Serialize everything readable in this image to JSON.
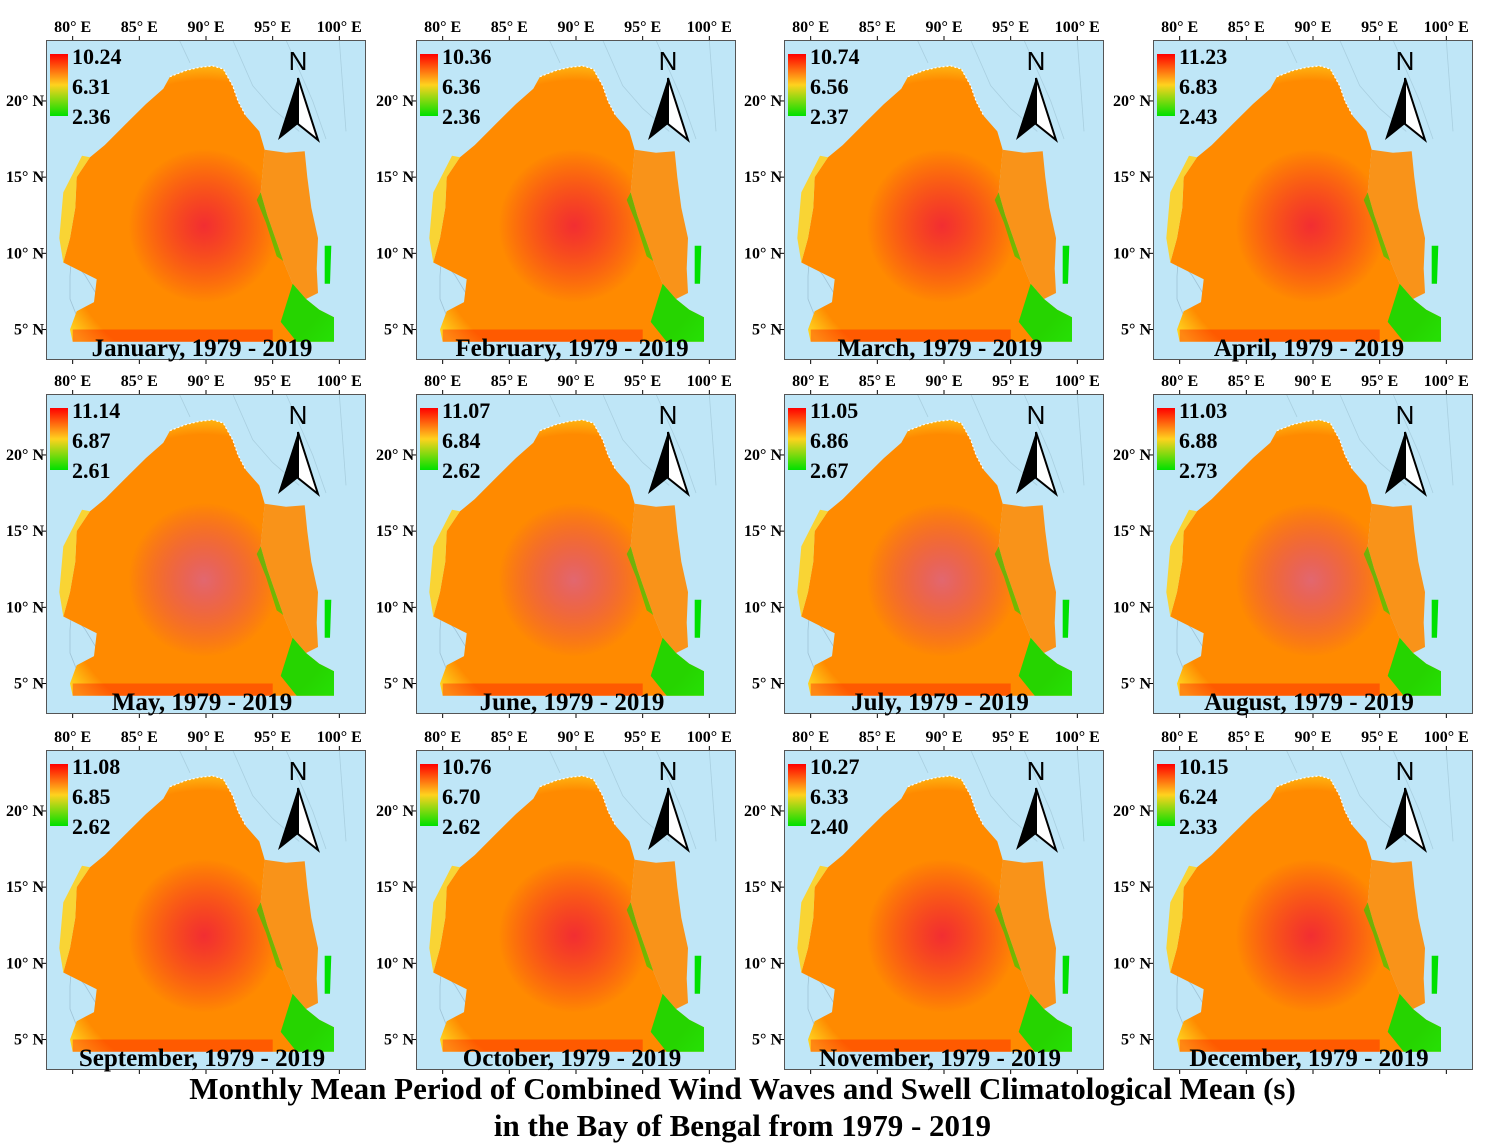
{
  "figure": {
    "title_line1": "Monthly Mean Period of Combined Wind Waves and Swell Climatological Mean (s)",
    "title_line2": "in the Bay of Bengal from 1979 - 2019"
  },
  "map_axes": {
    "lon_ticks": [
      "80° E",
      "85° E",
      "90° E",
      "95° E",
      "100° E"
    ],
    "lon_values": [
      80,
      85,
      90,
      95,
      100
    ],
    "lat_ticks": [
      "20° N",
      "15° N",
      "10° N",
      "5° N"
    ],
    "lat_values": [
      20,
      15,
      10,
      5
    ],
    "lon_range": [
      78,
      102
    ],
    "lat_range": [
      3,
      24
    ],
    "north_arrow_label": "N"
  },
  "colors": {
    "land": "#bfe6f7",
    "high": "#ff0000",
    "mid_high": "#ff8a00",
    "mid": "#ffd21e",
    "low": "#00e000",
    "sea_border": "#888888"
  },
  "panels": [
    {
      "title": "January, 1979 - 2019",
      "legend": [
        "10.24",
        "6.31",
        "2.36"
      ]
    },
    {
      "title": "February, 1979 - 2019",
      "legend": [
        "10.36",
        "6.36",
        "2.36"
      ]
    },
    {
      "title": "March, 1979 - 2019",
      "legend": [
        "10.74",
        "6.56",
        "2.37"
      ]
    },
    {
      "title": "April, 1979 - 2019",
      "legend": [
        "11.23",
        "6.83",
        "2.43"
      ]
    },
    {
      "title": "May, 1979 - 2019",
      "legend": [
        "11.14",
        "6.87",
        "2.61"
      ]
    },
    {
      "title": "June, 1979 - 2019",
      "legend": [
        "11.07",
        "6.84",
        "2.62"
      ]
    },
    {
      "title": "July, 1979 - 2019",
      "legend": [
        "11.05",
        "6.86",
        "2.67"
      ]
    },
    {
      "title": "August, 1979 - 2019",
      "legend": [
        "11.03",
        "6.88",
        "2.73"
      ]
    },
    {
      "title": "September, 1979 - 2019",
      "legend": [
        "11.08",
        "6.85",
        "2.62"
      ]
    },
    {
      "title": "October, 1979 - 2019",
      "legend": [
        "10.76",
        "6.70",
        "2.62"
      ]
    },
    {
      "title": "November, 1979 - 2019",
      "legend": [
        "10.27",
        "6.33",
        "2.40"
      ]
    },
    {
      "title": "December, 1979 - 2019",
      "legend": [
        "10.15",
        "6.24",
        "2.33"
      ]
    }
  ]
}
